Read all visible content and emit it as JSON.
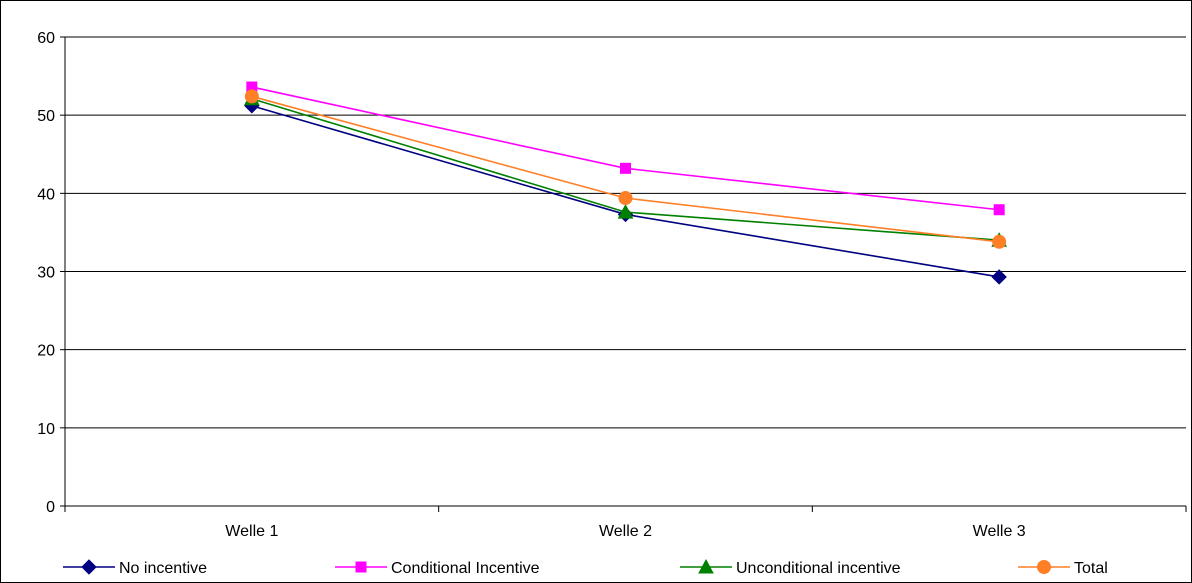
{
  "chart_data": {
    "type": "line",
    "title": "",
    "xlabel": "",
    "ylabel": "",
    "categories": [
      "Welle 1",
      "Welle 2",
      "Welle 3"
    ],
    "ylim": [
      0,
      60
    ],
    "yticks": [
      "0",
      "10",
      "20",
      "30",
      "40",
      "50",
      "60"
    ],
    "grid": true,
    "legend_position": "bottom",
    "series": [
      {
        "name": "No incentive",
        "color": "#000080",
        "marker": "diamond",
        "values": [
          51.2,
          37.3,
          29.3
        ]
      },
      {
        "name": "Conditional Incentive",
        "color": "#ff00ff",
        "marker": "square",
        "values": [
          53.6,
          43.2,
          37.9
        ]
      },
      {
        "name": "Unconditional incentive",
        "color": "#008000",
        "marker": "triangle",
        "values": [
          52.1,
          37.6,
          34.0
        ]
      },
      {
        "name": "Total",
        "color": "#ff7f27",
        "marker": "circle",
        "values": [
          52.4,
          39.4,
          33.8
        ]
      }
    ]
  }
}
